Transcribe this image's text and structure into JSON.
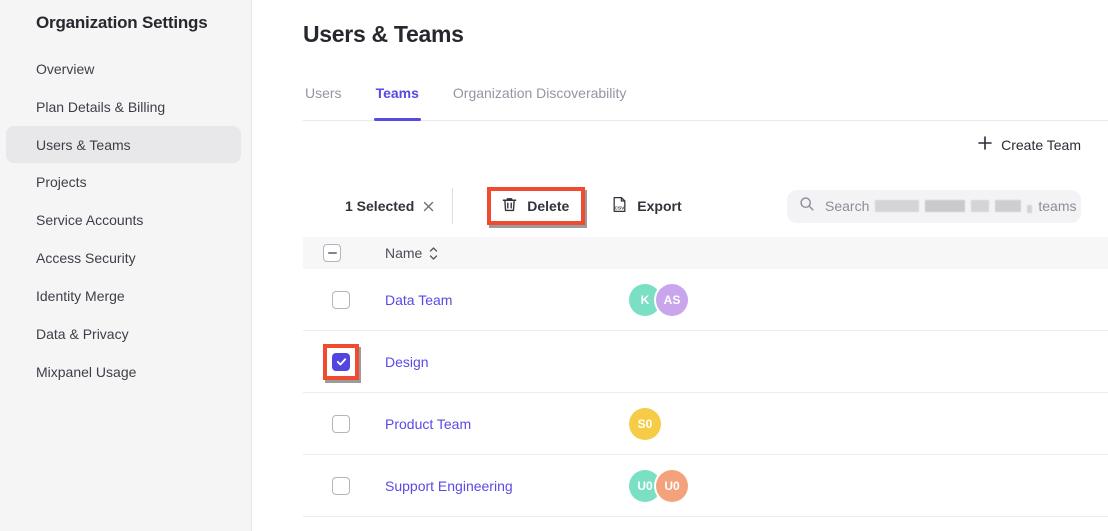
{
  "sidebar": {
    "title": "Organization Settings",
    "items": [
      {
        "label": "Overview",
        "active": false
      },
      {
        "label": "Plan Details & Billing",
        "active": false
      },
      {
        "label": "Users & Teams",
        "active": true
      },
      {
        "label": "Projects",
        "active": false
      },
      {
        "label": "Service Accounts",
        "active": false
      },
      {
        "label": "Access Security",
        "active": false
      },
      {
        "label": "Identity Merge",
        "active": false
      },
      {
        "label": "Data & Privacy",
        "active": false
      },
      {
        "label": "Mixpanel Usage",
        "active": false
      }
    ]
  },
  "header": {
    "title": "Users & Teams"
  },
  "tabs": [
    {
      "label": "Users",
      "active": false
    },
    {
      "label": "Teams",
      "active": true
    },
    {
      "label": "Organization Discoverability",
      "active": false
    }
  ],
  "actions": {
    "create_team_label": "Create Team",
    "selected_count_label": "1 Selected",
    "delete_label": "Delete",
    "export_label": "Export",
    "search_prefix": "Search",
    "search_suffix": "teams",
    "search_middle_redacted": true
  },
  "icons": {
    "plus": "plus-icon",
    "dismiss": "x-icon",
    "delete": "trash-icon",
    "export": "csv-file-icon",
    "search": "magnifier-icon",
    "sort": "sort-arrows-icon"
  },
  "colors": {
    "accent_purple": "#564ae2",
    "annotation_red": "#ef4b30",
    "sidebar_bg": "#f5f5f6",
    "table_header_bg": "#f7f7f8"
  },
  "table": {
    "name_header": "Name",
    "header_checkbox_state": "indeterminate",
    "rows": [
      {
        "name": "Data Team",
        "checked": false,
        "annotated": false,
        "avatars": [
          {
            "initials": "K",
            "color": "#7be0c3"
          },
          {
            "initials": "AS",
            "color": "#c9a5ee"
          }
        ]
      },
      {
        "name": "Design",
        "checked": true,
        "annotated": true,
        "avatars": []
      },
      {
        "name": "Product Team",
        "checked": false,
        "annotated": false,
        "avatars": [
          {
            "initials": "S0",
            "color": "#f6cc46"
          }
        ]
      },
      {
        "name": "Support Engineering",
        "checked": false,
        "annotated": false,
        "avatars": [
          {
            "initials": "U0",
            "color": "#7be0c3"
          },
          {
            "initials": "U0",
            "color": "#f4a27c"
          }
        ]
      }
    ]
  }
}
